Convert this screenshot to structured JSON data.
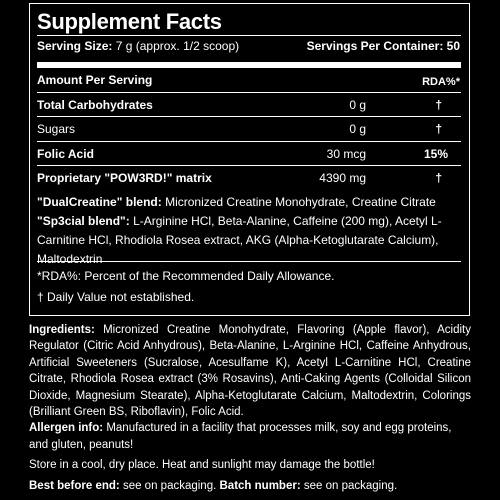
{
  "facts": {
    "title": "Supplement Facts",
    "serving_size_label": "Serving Size:",
    "serving_size_value": "7 g (approx. 1/2 scoop)",
    "servings_per_container": "Servings Per Container: 50",
    "amount_per_serving": "Amount Per Serving",
    "rda_header": "RDA%*",
    "rows": [
      {
        "name": "Total Carbohydrates",
        "amount": "0 g",
        "rda": "†",
        "bold": true
      },
      {
        "name": "Sugars",
        "amount": "0 g",
        "rda": "†",
        "bold": false
      },
      {
        "name": "Folic Acid",
        "amount": "30 mcg",
        "rda": "15%",
        "bold": true
      },
      {
        "name": "Proprietary \"POW3RD!\" matrix",
        "amount": "4390 mg",
        "rda": "†",
        "bold": true
      }
    ],
    "blend1_label": "\"DualCreatine\" blend:",
    "blend1_text": " Micronized Creatine Monohydrate, Creatine Citrate",
    "blend2_label": "\"Sp3cial blend\":",
    "blend2_text": " L-Arginine HCl, Beta-Alanine, Caffeine (200 mg), Acetyl L-Carnitine HCl, Rhodiola Rosea extract, AKG (Alpha-Ketoglutarate Calcium), Maltodextrin",
    "footnote1": "*RDA%: Percent of the Recommended Daily Allowance.",
    "footnote2": "† Daily Value not established."
  },
  "info": {
    "ingredients_label": "Ingredients:",
    "ingredients_text": " Micronized Creatine Monohydrate, Flavoring (Apple flavor), Acidity Regulator (Citric Acid Anhydrous), Beta-Alanine, L-Arginine HCl, Caffeine Anhydrous, Artificial Sweeteners (Sucralose, Acesulfame K), Acetyl L-Carnitine HCl, Creatine Citrate, Rhodiola Rosea extract (3% Rosavins), Anti-Caking Agents (Colloidal Silicon Dioxide, Magnesium Stearate), Alpha-Ketoglutarate Calcium, Maltodextrin, Colorings (Brilliant Green BS, Riboflavin), Folic Acid.",
    "allergen_label": "Allergen info:",
    "allergen_text": " Manufactured in a facility that processes milk, soy and egg proteins, and gluten, peanuts!",
    "storage_text": "Store in a cool, dry place. Heat and sunlight may damage the bottle!",
    "best_before_label": "Best before end:",
    "best_before_text": " see on packaging.",
    "batch_label": "Batch number:",
    "batch_text": " see on packaging."
  }
}
